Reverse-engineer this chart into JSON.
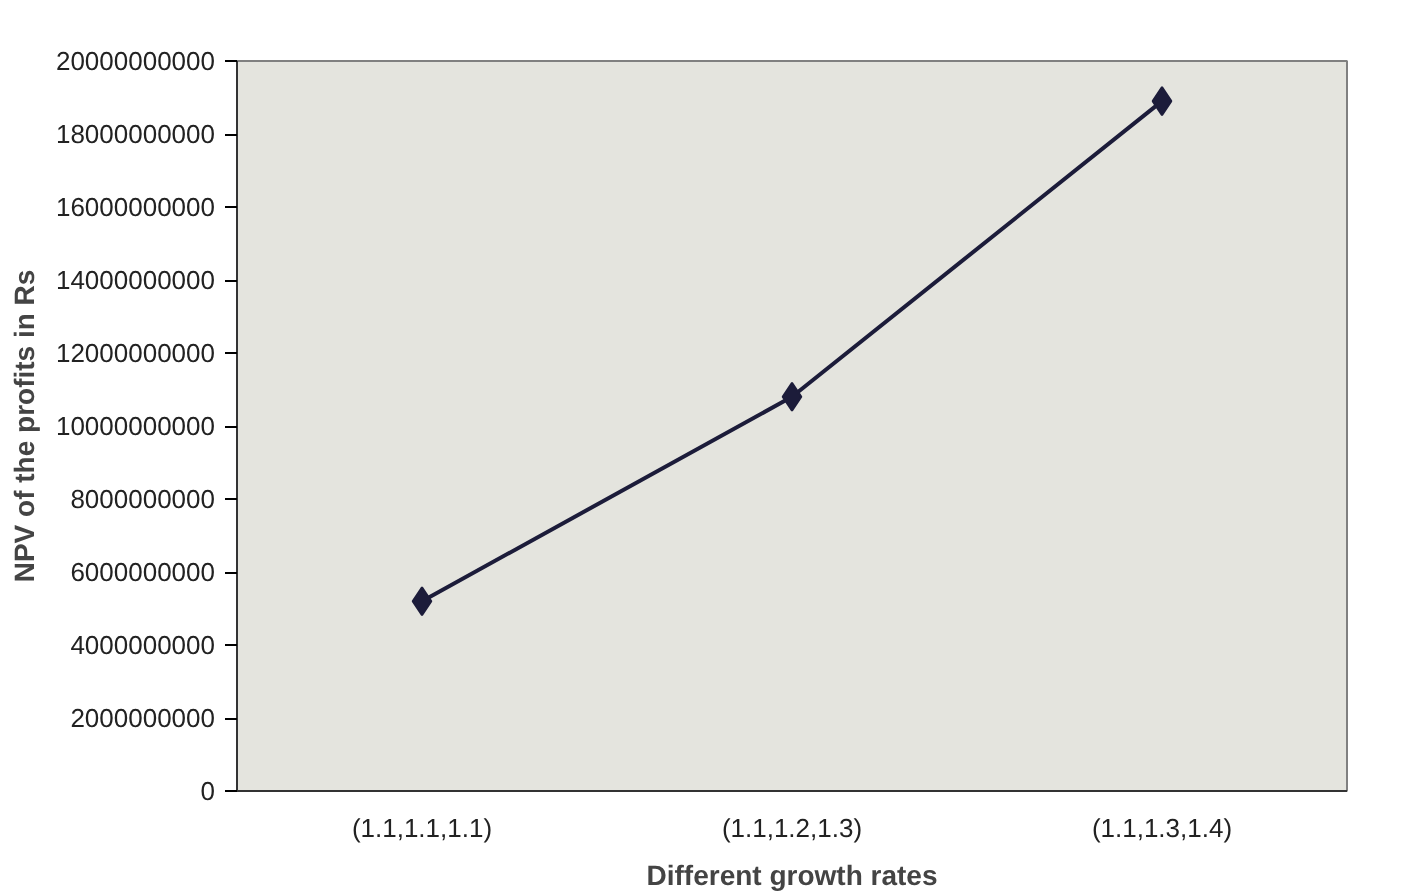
{
  "chart_data": {
    "type": "line",
    "xlabel": "Different growth rates",
    "ylabel": "NPV of the profits in Rs",
    "categories": [
      "(1.1,1.1,1.1)",
      "(1.1,1.2,1.3)",
      "(1.1,1.3,1.4)"
    ],
    "series": [
      {
        "color": "#1c1c3a",
        "values": [
          5200000000,
          10800000000,
          18900000000
        ]
      }
    ],
    "ylim": [
      0,
      20000000000
    ],
    "yticks": [
      0,
      2000000000,
      4000000000,
      6000000000,
      8000000000,
      10000000000,
      12000000000,
      14000000000,
      16000000000,
      18000000000,
      20000000000
    ],
    "marker": "diamond",
    "line_style": "solid"
  }
}
